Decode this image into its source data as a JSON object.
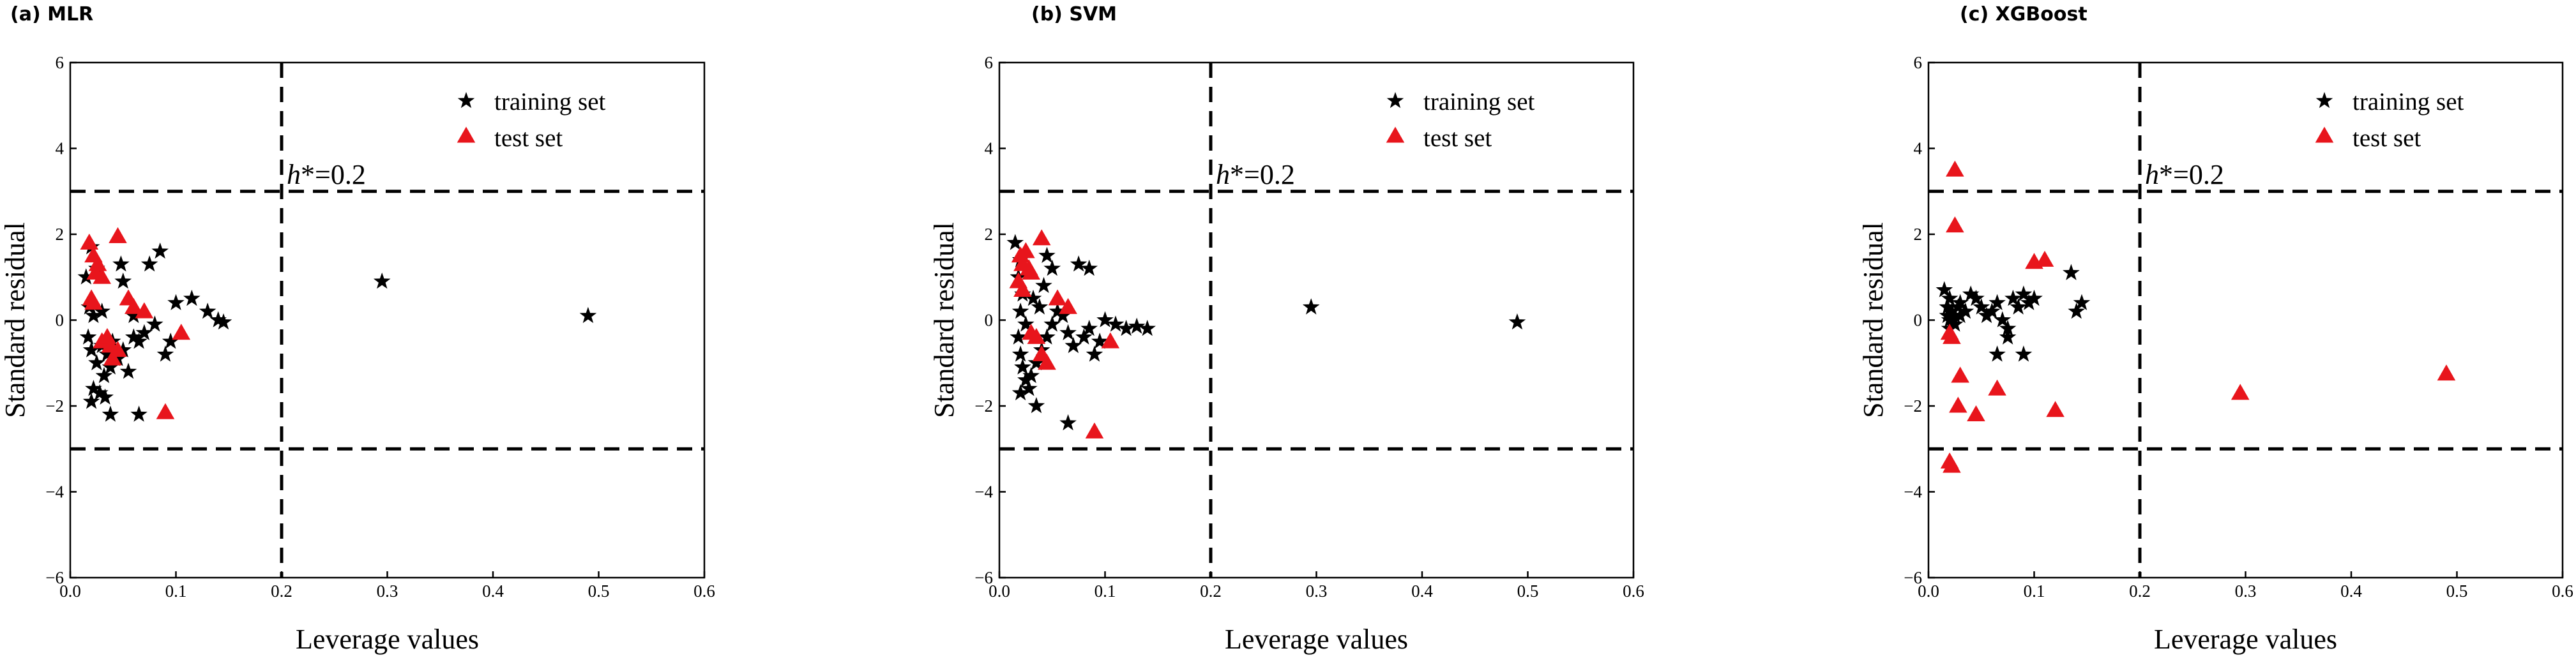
{
  "chart_data": [
    {
      "type": "scatter",
      "title": "(a) MLR",
      "xlabel": "Leverage values",
      "ylabel": "Standard residual",
      "xlim": [
        0.0,
        0.6
      ],
      "ylim": [
        -6,
        6
      ],
      "xticks": [
        "0.0",
        "0.1",
        "0.2",
        "0.3",
        "0.4",
        "0.5",
        "0.6"
      ],
      "yticks": [
        "6",
        "4",
        "2",
        "0",
        "−2",
        "−4",
        "−6"
      ],
      "threshold_annotation": {
        "var": "h",
        "text": "*=0.2",
        "x": 0.2,
        "y": 3
      },
      "reference_lines": {
        "h_star": 0.2,
        "residual_bounds": [
          -3,
          3
        ]
      },
      "legend": {
        "position": "top-right",
        "entries": [
          "training set",
          "test set"
        ]
      },
      "series": [
        {
          "name": "training set",
          "color": "#000000",
          "marker": "star",
          "points": [
            [
              0.015,
              1.0
            ],
            [
              0.02,
              1.7
            ],
            [
              0.025,
              1.2
            ],
            [
              0.018,
              0.3
            ],
            [
              0.022,
              0.1
            ],
            [
              0.03,
              0.2
            ],
            [
              0.017,
              -0.4
            ],
            [
              0.02,
              -0.7
            ],
            [
              0.025,
              -1.0
            ],
            [
              0.03,
              -0.6
            ],
            [
              0.035,
              -0.8
            ],
            [
              0.04,
              -0.5
            ],
            [
              0.045,
              -0.9
            ],
            [
              0.05,
              -0.7
            ],
            [
              0.055,
              -1.2
            ],
            [
              0.06,
              -0.4
            ],
            [
              0.065,
              -0.5
            ],
            [
              0.07,
              -0.3
            ],
            [
              0.08,
              -0.1
            ],
            [
              0.09,
              -0.8
            ],
            [
              0.095,
              -0.5
            ],
            [
              0.1,
              0.4
            ],
            [
              0.115,
              0.5
            ],
            [
              0.13,
              0.2
            ],
            [
              0.14,
              0.0
            ],
            [
              0.145,
              -0.05
            ],
            [
              0.048,
              1.3
            ],
            [
              0.05,
              0.9
            ],
            [
              0.06,
              0.1
            ],
            [
              0.075,
              1.3
            ],
            [
              0.085,
              1.6
            ],
            [
              0.032,
              -1.3
            ],
            [
              0.038,
              -1.1
            ],
            [
              0.042,
              -0.9
            ],
            [
              0.028,
              -1.7
            ],
            [
              0.033,
              -1.8
            ],
            [
              0.02,
              -1.9
            ],
            [
              0.022,
              -1.6
            ],
            [
              0.038,
              -2.2
            ],
            [
              0.065,
              -2.2
            ],
            [
              0.295,
              0.9
            ],
            [
              0.49,
              0.1
            ]
          ]
        },
        {
          "name": "test set",
          "color": "#e8151c",
          "marker": "triangle",
          "points": [
            [
              0.018,
              1.8
            ],
            [
              0.022,
              1.5
            ],
            [
              0.024,
              1.1
            ],
            [
              0.026,
              1.3
            ],
            [
              0.02,
              0.5
            ],
            [
              0.022,
              0.4
            ],
            [
              0.03,
              1.0
            ],
            [
              0.045,
              1.95
            ],
            [
              0.055,
              0.5
            ],
            [
              0.06,
              0.3
            ],
            [
              0.07,
              0.2
            ],
            [
              0.105,
              -0.3
            ],
            [
              0.03,
              -0.5
            ],
            [
              0.035,
              -0.4
            ],
            [
              0.038,
              -0.6
            ],
            [
              0.04,
              -0.9
            ],
            [
              0.045,
              -0.7
            ],
            [
              0.09,
              -2.15
            ]
          ]
        }
      ]
    },
    {
      "type": "scatter",
      "title": "(b) SVM",
      "xlabel": "Leverage values",
      "ylabel": "Standard residual",
      "xlim": [
        0.0,
        0.6
      ],
      "ylim": [
        -6,
        6
      ],
      "xticks": [
        "0.0",
        "0.1",
        "0.2",
        "0.3",
        "0.4",
        "0.5",
        "0.6"
      ],
      "yticks": [
        "6",
        "4",
        "2",
        "0",
        "−2",
        "−4",
        "−6"
      ],
      "threshold_annotation": {
        "var": "h",
        "text": "*=0.2",
        "x": 0.2,
        "y": 3
      },
      "reference_lines": {
        "h_star": 0.2,
        "residual_bounds": [
          -3,
          3
        ]
      },
      "legend": {
        "position": "top-right",
        "entries": [
          "training set",
          "test set"
        ]
      },
      "series": [
        {
          "name": "training set",
          "color": "#000000",
          "marker": "star",
          "points": [
            [
              0.015,
              1.8
            ],
            [
              0.02,
              1.4
            ],
            [
              0.018,
              1.0
            ],
            [
              0.022,
              0.6
            ],
            [
              0.02,
              0.2
            ],
            [
              0.025,
              -0.1
            ],
            [
              0.018,
              -0.4
            ],
            [
              0.02,
              -0.8
            ],
            [
              0.022,
              -1.1
            ],
            [
              0.025,
              -1.4
            ],
            [
              0.02,
              -1.7
            ],
            [
              0.028,
              -1.6
            ],
            [
              0.03,
              -1.3
            ],
            [
              0.035,
              -1.0
            ],
            [
              0.04,
              -0.7
            ],
            [
              0.045,
              -0.4
            ],
            [
              0.05,
              -0.1
            ],
            [
              0.055,
              0.2
            ],
            [
              0.06,
              0.1
            ],
            [
              0.065,
              -0.3
            ],
            [
              0.07,
              -0.6
            ],
            [
              0.08,
              -0.4
            ],
            [
              0.085,
              -0.2
            ],
            [
              0.09,
              -0.8
            ],
            [
              0.095,
              -0.5
            ],
            [
              0.1,
              0.0
            ],
            [
              0.11,
              -0.1
            ],
            [
              0.12,
              -0.2
            ],
            [
              0.13,
              -0.15
            ],
            [
              0.14,
              -0.2
            ],
            [
              0.045,
              1.5
            ],
            [
              0.05,
              1.2
            ],
            [
              0.075,
              1.3
            ],
            [
              0.085,
              1.2
            ],
            [
              0.032,
              0.5
            ],
            [
              0.038,
              0.3
            ],
            [
              0.042,
              0.8
            ],
            [
              0.035,
              -2.0
            ],
            [
              0.065,
              -2.4
            ],
            [
              0.295,
              0.3
            ],
            [
              0.49,
              -0.05
            ]
          ]
        },
        {
          "name": "test set",
          "color": "#e8151c",
          "marker": "triangle",
          "points": [
            [
              0.02,
              1.5
            ],
            [
              0.022,
              1.3
            ],
            [
              0.025,
              1.6
            ],
            [
              0.028,
              1.2
            ],
            [
              0.03,
              1.1
            ],
            [
              0.018,
              0.9
            ],
            [
              0.022,
              0.7
            ],
            [
              0.04,
              1.9
            ],
            [
              0.055,
              0.5
            ],
            [
              0.065,
              0.3
            ],
            [
              0.105,
              -0.5
            ],
            [
              0.03,
              -0.3
            ],
            [
              0.035,
              -0.4
            ],
            [
              0.04,
              -0.8
            ],
            [
              0.045,
              -1.0
            ],
            [
              0.09,
              -2.6
            ]
          ]
        }
      ]
    },
    {
      "type": "scatter",
      "title": "(c) XGBoost",
      "xlabel": "Leverage values",
      "ylabel": "Standard residual",
      "xlim": [
        0.0,
        0.6
      ],
      "ylim": [
        -6,
        6
      ],
      "xticks": [
        "0.0",
        "0.1",
        "0.2",
        "0.3",
        "0.4",
        "0.5",
        "0.6"
      ],
      "yticks": [
        "6",
        "4",
        "2",
        "0",
        "−2",
        "−4",
        "−6"
      ],
      "threshold_annotation": {
        "var": "h",
        "text": "*=0.2",
        "x": 0.2,
        "y": 3
      },
      "reference_lines": {
        "h_star": 0.2,
        "residual_bounds": [
          -3,
          3
        ]
      },
      "legend": {
        "position": "top-right",
        "entries": [
          "training set",
          "test set"
        ]
      },
      "series": [
        {
          "name": "training set",
          "color": "#000000",
          "marker": "star",
          "points": [
            [
              0.015,
              0.7
            ],
            [
              0.02,
              0.5
            ],
            [
              0.018,
              0.3
            ],
            [
              0.022,
              0.2
            ],
            [
              0.025,
              0.1
            ],
            [
              0.028,
              0.3
            ],
            [
              0.03,
              0.4
            ],
            [
              0.035,
              0.2
            ],
            [
              0.04,
              0.6
            ],
            [
              0.045,
              0.5
            ],
            [
              0.05,
              0.3
            ],
            [
              0.055,
              0.1
            ],
            [
              0.06,
              0.2
            ],
            [
              0.065,
              0.4
            ],
            [
              0.07,
              0.0
            ],
            [
              0.075,
              -0.2
            ],
            [
              0.08,
              0.5
            ],
            [
              0.085,
              0.3
            ],
            [
              0.09,
              0.6
            ],
            [
              0.095,
              0.4
            ],
            [
              0.1,
              0.5
            ],
            [
              0.135,
              1.1
            ],
            [
              0.14,
              0.2
            ],
            [
              0.145,
              0.4
            ],
            [
              0.02,
              0.0
            ],
            [
              0.025,
              -0.1
            ],
            [
              0.03,
              0.1
            ],
            [
              0.065,
              -0.8
            ],
            [
              0.075,
              -0.4
            ],
            [
              0.09,
              -0.8
            ],
            [
              0.02,
              -0.2
            ],
            [
              0.018,
              0.1
            ]
          ]
        },
        {
          "name": "test set",
          "color": "#e8151c",
          "marker": "triangle",
          "points": [
            [
              0.025,
              3.5
            ],
            [
              0.025,
              2.2
            ],
            [
              0.02,
              -0.3
            ],
            [
              0.022,
              -0.4
            ],
            [
              0.03,
              -1.3
            ],
            [
              0.028,
              -2.0
            ],
            [
              0.045,
              -2.2
            ],
            [
              0.065,
              -1.6
            ],
            [
              0.1,
              1.35
            ],
            [
              0.11,
              1.4
            ],
            [
              0.12,
              -2.1
            ],
            [
              0.02,
              -3.3
            ],
            [
              0.022,
              -3.4
            ],
            [
              0.295,
              -1.7
            ],
            [
              0.49,
              -1.25
            ]
          ]
        }
      ]
    }
  ]
}
